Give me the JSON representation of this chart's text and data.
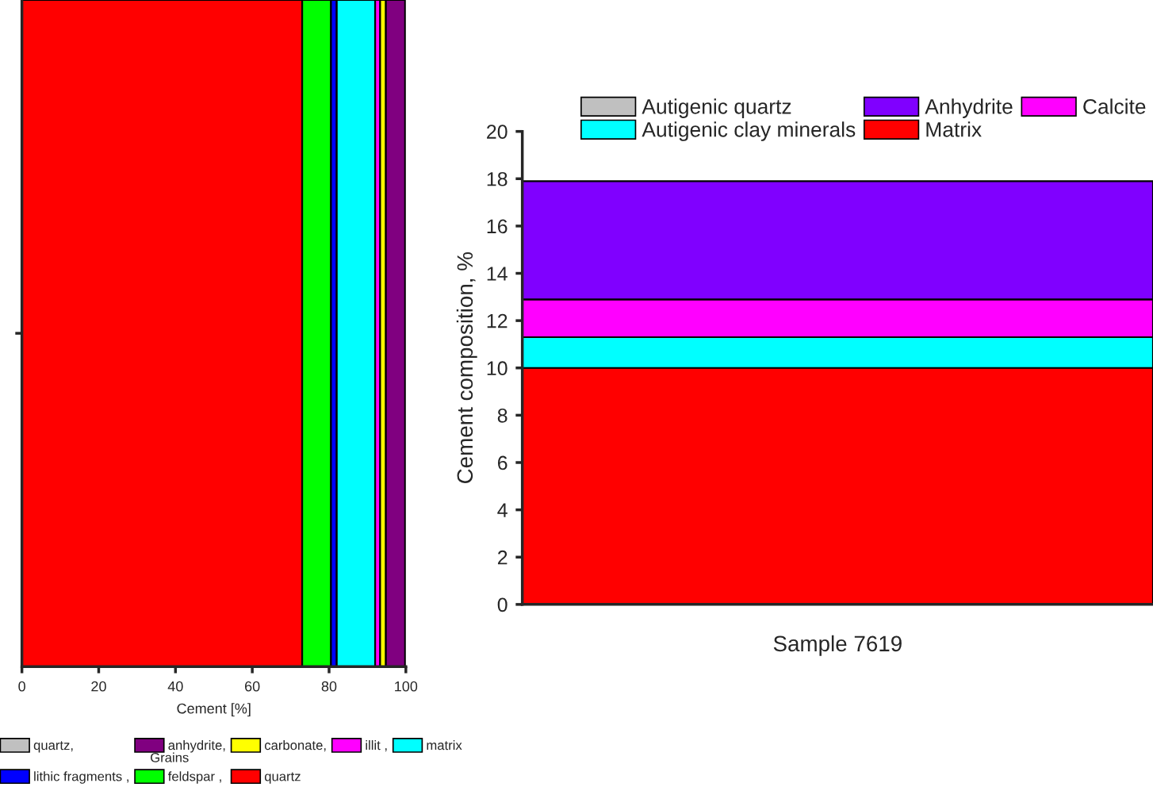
{
  "chart_data": [
    {
      "type": "bar",
      "orientation": "horizontal",
      "stacked": true,
      "categories": [
        null
      ],
      "xlabel": "Cement [%]",
      "xlim": [
        0,
        100
      ],
      "xticks": [
        0,
        20,
        40,
        60,
        80,
        100
      ],
      "tick_labels": "x",
      "legend": "bottom",
      "grid": false,
      "annotations": [
        "Grains"
      ],
      "series": [
        {
          "name": "quartz",
          "color": "#ff0000",
          "values": [
            73
          ]
        },
        {
          "name": "feldspar ,",
          "color": "#00ff00",
          "values": [
            7.5
          ]
        },
        {
          "name": "lithic fragments ,",
          "color": "#0000ff",
          "values": [
            1.5
          ]
        },
        {
          "name": "matrix",
          "color": "#00ffff",
          "values": [
            10
          ]
        },
        {
          "name": "illit ,",
          "color": "#ff00ff",
          "values": [
            1.3
          ]
        },
        {
          "name": "carbonate,",
          "color": "#ffff00",
          "values": [
            1.5
          ]
        },
        {
          "name": "anhydrite,",
          "color": "#800080",
          "values": [
            5
          ]
        },
        {
          "name": "quartz,",
          "color": "#c0c0c0",
          "values": [
            0
          ]
        }
      ]
    },
    {
      "type": "bar",
      "stacked": true,
      "categories": [
        "Sample 7619"
      ],
      "ylabel": "Cement composition, %",
      "ylim": [
        0,
        20
      ],
      "yticks": [
        0,
        2,
        4,
        6,
        8,
        10,
        12,
        14,
        16,
        18,
        20
      ],
      "legend": "top",
      "grid": false,
      "series": [
        {
          "name": "Matrix",
          "color": "#ff0000",
          "values": [
            10
          ]
        },
        {
          "name": "Autigenic clay minerals",
          "color": "#00ffff",
          "values": [
            1.3
          ]
        },
        {
          "name": "Calcite",
          "color": "#ff00ff",
          "values": [
            1.6
          ]
        },
        {
          "name": "Anhydrite",
          "color": "#8000ff",
          "values": [
            5.0
          ]
        },
        {
          "name": "Autigenic quartz",
          "color": "#c0c0c0",
          "values": [
            0
          ]
        }
      ]
    }
  ]
}
